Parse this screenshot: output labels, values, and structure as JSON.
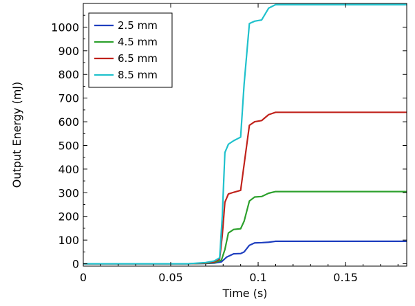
{
  "chart_data": {
    "type": "line",
    "title": "",
    "xlabel": "Time (s)",
    "ylabel": "Output Energy (mJ)",
    "xlim": [
      0,
      0.185
    ],
    "ylim": [
      -10,
      1100
    ],
    "xticks": [
      0,
      0.05,
      0.1,
      0.15
    ],
    "xtick_labels": [
      "0",
      "0.05",
      "0.1",
      "0.15"
    ],
    "yticks": [
      0,
      100,
      200,
      300,
      400,
      500,
      600,
      700,
      800,
      900,
      1000
    ],
    "ytick_labels": [
      "0",
      "100",
      "200",
      "300",
      "400",
      "500",
      "600",
      "700",
      "800",
      "900",
      "1000"
    ],
    "grid": false,
    "legend_position": "top-left",
    "series": [
      {
        "name": "2.5 mm",
        "color": "#1f3fbf",
        "x": [
          0,
          0.06,
          0.07,
          0.075,
          0.079,
          0.082,
          0.086,
          0.09,
          0.092,
          0.095,
          0.098,
          0.102,
          0.106,
          0.11,
          0.185
        ],
        "y": [
          0,
          0,
          1,
          3,
          8,
          28,
          42,
          43,
          50,
          78,
          88,
          89,
          91,
          95,
          95
        ]
      },
      {
        "name": "4.5 mm",
        "color": "#2ca02c",
        "x": [
          0,
          0.06,
          0.07,
          0.075,
          0.079,
          0.081,
          0.083,
          0.086,
          0.09,
          0.092,
          0.095,
          0.098,
          0.102,
          0.106,
          0.11,
          0.185
        ],
        "y": [
          0,
          0,
          2,
          5,
          15,
          60,
          130,
          145,
          148,
          180,
          265,
          282,
          284,
          298,
          305,
          305
        ]
      },
      {
        "name": "6.5 mm",
        "color": "#c0221b",
        "x": [
          0,
          0.06,
          0.07,
          0.075,
          0.078,
          0.0795,
          0.081,
          0.083,
          0.086,
          0.09,
          0.092,
          0.095,
          0.098,
          0.102,
          0.106,
          0.11,
          0.185
        ],
        "y": [
          0,
          0,
          3,
          8,
          20,
          120,
          260,
          295,
          302,
          310,
          420,
          585,
          600,
          605,
          630,
          640,
          640
        ]
      },
      {
        "name": "8.5 mm",
        "color": "#1fc1cc",
        "x": [
          0,
          0.06,
          0.07,
          0.075,
          0.078,
          0.0795,
          0.081,
          0.083,
          0.086,
          0.09,
          0.092,
          0.095,
          0.098,
          0.102,
          0.106,
          0.11,
          0.185
        ],
        "y": [
          0,
          0,
          5,
          12,
          25,
          200,
          470,
          505,
          520,
          535,
          760,
          1015,
          1025,
          1030,
          1080,
          1095,
          1095
        ]
      }
    ]
  }
}
